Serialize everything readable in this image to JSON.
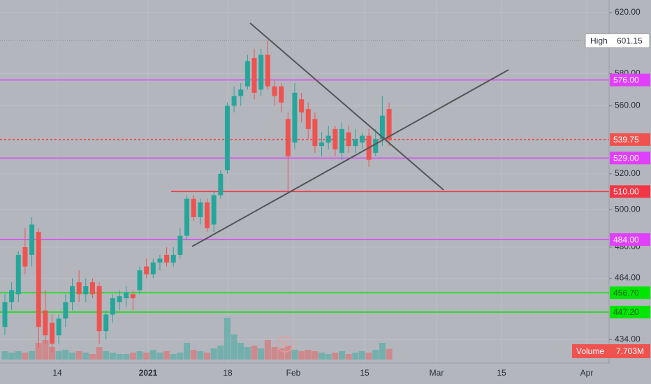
{
  "chart_data": {
    "type": "candlestick",
    "log_scale": true,
    "grid": true,
    "ylim": [
      423,
      628.5
    ],
    "yticks": [
      {
        "value": 620,
        "label": "620.00"
      },
      {
        "value": 580,
        "label": "580.00"
      },
      {
        "value": 560,
        "label": "560.00"
      },
      {
        "value": 520,
        "label": "520.00"
      },
      {
        "value": 500,
        "label": "500.00"
      },
      {
        "value": 480,
        "label": "480.00"
      },
      {
        "value": 464,
        "label": "464.00"
      },
      {
        "value": 434,
        "label": "434.00"
      }
    ],
    "x_labels": [
      "14",
      "2021",
      "18",
      "Feb",
      "15",
      "Mar",
      "15",
      "Apr"
    ],
    "up_color": "#26a69a",
    "down_color": "#ef5350",
    "open": [
      440,
      452,
      456,
      480,
      476,
      488,
      448,
      442,
      436,
      444,
      452,
      462,
      456,
      462,
      460,
      438,
      446,
      452,
      454,
      456,
      458,
      470,
      466,
      472,
      476,
      472,
      476,
      486,
      506,
      496,
      504,
      492,
      508,
      522,
      560,
      566,
      572,
      590,
      570,
      592,
      572,
      572,
      552,
      538,
      564,
      558,
      552,
      536,
      538,
      546,
      532,
      544,
      536,
      538,
      542,
      532,
      540,
      558
    ],
    "high": [
      456,
      462,
      478,
      490,
      496,
      490,
      458,
      446,
      446,
      456,
      464,
      468,
      464,
      464,
      462,
      448,
      456,
      458,
      460,
      458,
      470,
      474,
      474,
      476,
      480,
      480,
      490,
      508,
      508,
      506,
      506,
      510,
      522,
      562,
      572,
      574,
      592,
      596,
      596,
      601.15,
      576,
      574,
      556,
      574,
      568,
      562,
      556,
      544,
      548,
      548,
      550,
      548,
      546,
      544,
      546,
      546,
      566,
      562
    ],
    "low": [
      436,
      448,
      452,
      466,
      470,
      430,
      432,
      428,
      432,
      440,
      448,
      452,
      452,
      454,
      432,
      434,
      442,
      448,
      450,
      448,
      456,
      464,
      464,
      468,
      470,
      470,
      474,
      484,
      494,
      492,
      488,
      488,
      506,
      520,
      556,
      560,
      570,
      564,
      566,
      570,
      560,
      556,
      510,
      534,
      550,
      540,
      532,
      530,
      534,
      530,
      528,
      532,
      532,
      534,
      524,
      530,
      536,
      536
    ],
    "close": [
      452,
      458,
      476,
      470,
      492,
      440,
      436,
      432,
      444,
      452,
      460,
      456,
      460,
      456,
      438,
      446,
      454,
      455,
      457,
      454,
      468,
      466,
      472,
      474,
      472,
      476,
      486,
      506,
      496,
      504,
      490,
      508,
      520,
      560,
      566,
      570,
      588,
      568,
      592,
      572,
      566,
      562,
      530,
      568,
      556,
      546,
      536,
      538,
      542,
      534,
      546,
      536,
      540,
      542,
      528,
      540,
      554,
      539.75
    ],
    "volume": {
      "name": "Volume",
      "values": [
        6,
        5,
        6,
        5,
        6,
        12,
        14,
        9,
        6,
        7,
        5,
        6,
        5,
        4,
        9,
        6,
        5,
        4,
        4,
        5,
        6,
        5,
        7,
        5,
        6,
        4,
        5,
        12,
        7,
        6,
        5,
        8,
        10,
        30,
        18,
        12,
        9,
        10,
        8,
        14,
        9,
        8,
        10,
        7,
        6,
        7,
        6,
        5,
        4,
        5,
        6,
        4,
        5,
        6,
        5,
        7,
        12,
        7.703
      ],
      "last_label": "7.703M"
    },
    "high_marker": {
      "name": "High",
      "value": 601.15,
      "label": "601.15"
    },
    "last_price": {
      "value": 539.75,
      "label": "539.75",
      "color": "#ef5350"
    },
    "levels": [
      {
        "value": 576,
        "label": "576.00",
        "color": "#e040fb"
      },
      {
        "value": 529,
        "label": "529.00",
        "color": "#e040fb"
      },
      {
        "value": 510,
        "label": "510.00",
        "color": "#f23645"
      },
      {
        "value": 484,
        "label": "484.00",
        "color": "#e040fb"
      },
      {
        "value": 456.7,
        "label": "456.70",
        "color": "#00e600"
      },
      {
        "value": 447.2,
        "label": "447.20",
        "color": "#00e600"
      }
    ],
    "annotations": [
      "E"
    ]
  }
}
